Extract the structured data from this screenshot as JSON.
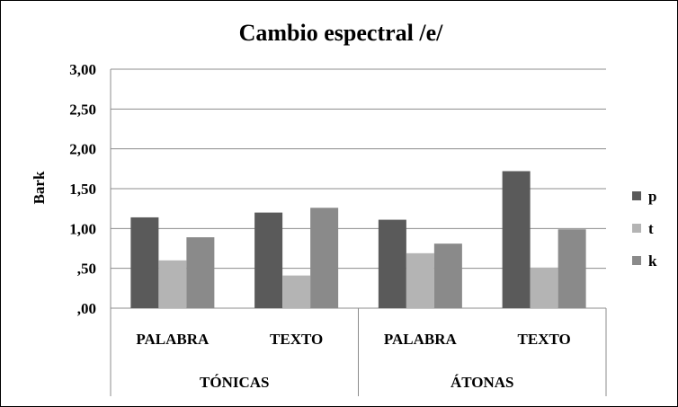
{
  "chart_data": {
    "type": "bar",
    "title": "Cambio espectral /e/",
    "ylabel": "Bark",
    "xlabel": "",
    "ylim": [
      0,
      3
    ],
    "yticks": [
      ",00",
      ",50",
      "1,00",
      "1,50",
      "2,00",
      "2,50",
      "3,00"
    ],
    "ytick_values": [
      0,
      0.5,
      1.0,
      1.5,
      2.0,
      2.5,
      3.0
    ],
    "grid": true,
    "legend_position": "right",
    "categories": [
      "PALABRA",
      "TEXTO",
      "PALABRA",
      "TEXTO"
    ],
    "groups": [
      {
        "label": "TÓNICAS",
        "span": 2
      },
      {
        "label": "ÁTONAS",
        "span": 2
      }
    ],
    "series": [
      {
        "name": "p",
        "color": "#5a5a5a",
        "values": [
          1.14,
          1.2,
          1.11,
          1.72
        ]
      },
      {
        "name": "t",
        "color": "#b4b4b4",
        "values": [
          0.6,
          0.41,
          0.69,
          0.51
        ]
      },
      {
        "name": "k",
        "color": "#8a8a8a",
        "values": [
          0.89,
          1.26,
          0.81,
          0.99
        ]
      }
    ]
  }
}
